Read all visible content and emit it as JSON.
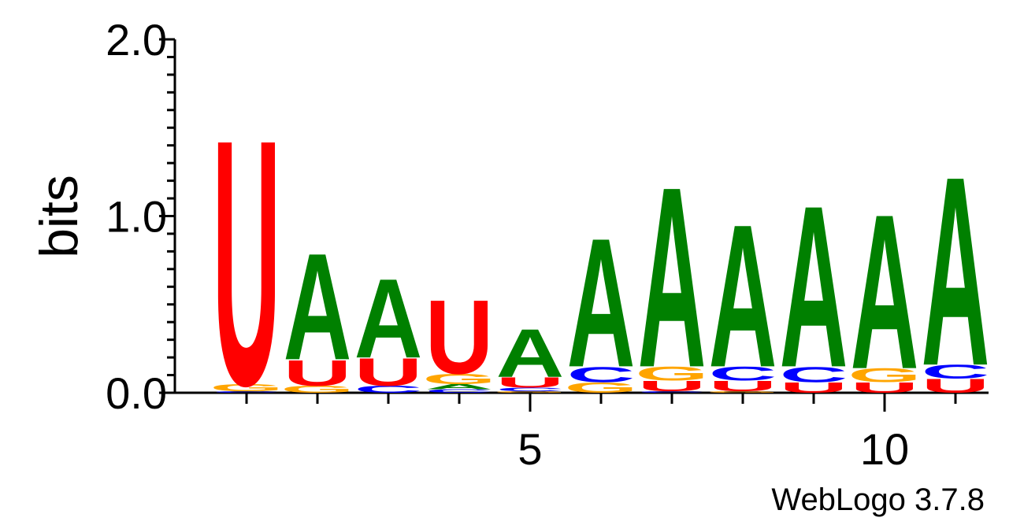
{
  "chart_data": {
    "type": "sequence-logo",
    "ylabel": "bits",
    "ylim": [
      0,
      2
    ],
    "y_ticks": [
      "0.0",
      "1.0",
      "2.0"
    ],
    "x_ticks": [
      "5",
      "10"
    ],
    "footer": "WebLogo 3.7.8",
    "colors": {
      "A": "#008000",
      "C": "#0000ff",
      "G": "#ffa500",
      "U": "#ff0000"
    },
    "positions": [
      {
        "pos": 1,
        "stack": [
          [
            "C",
            0.01
          ],
          [
            "G",
            0.04
          ],
          [
            "U",
            1.43
          ]
        ]
      },
      {
        "pos": 2,
        "stack": [
          [
            "G",
            0.04
          ],
          [
            "U",
            0.15
          ],
          [
            "A",
            0.62
          ]
        ]
      },
      {
        "pos": 3,
        "stack": [
          [
            "C",
            0.04
          ],
          [
            "U",
            0.16
          ],
          [
            "A",
            0.46
          ]
        ]
      },
      {
        "pos": 4,
        "stack": [
          [
            "C",
            0.02
          ],
          [
            "A",
            0.03
          ],
          [
            "G",
            0.06
          ],
          [
            "U",
            0.43
          ]
        ]
      },
      {
        "pos": 5,
        "stack": [
          [
            "G",
            0.01
          ],
          [
            "C",
            0.02
          ],
          [
            "U",
            0.06
          ],
          [
            "A",
            0.28
          ]
        ]
      },
      {
        "pos": 6,
        "stack": [
          [
            "G",
            0.06
          ],
          [
            "C",
            0.09
          ],
          [
            "A",
            0.75
          ]
        ]
      },
      {
        "pos": 7,
        "stack": [
          [
            "C",
            0.01
          ],
          [
            "U",
            0.06
          ],
          [
            "G",
            0.08
          ],
          [
            "A",
            1.05
          ]
        ]
      },
      {
        "pos": 8,
        "stack": [
          [
            "G",
            0.01
          ],
          [
            "U",
            0.06
          ],
          [
            "C",
            0.08
          ],
          [
            "A",
            0.83
          ]
        ]
      },
      {
        "pos": 9,
        "stack": [
          [
            "U",
            0.06
          ],
          [
            "C",
            0.09
          ],
          [
            "A",
            0.94
          ]
        ]
      },
      {
        "pos": 10,
        "stack": [
          [
            "U",
            0.06
          ],
          [
            "G",
            0.08
          ],
          [
            "A",
            0.9
          ]
        ]
      },
      {
        "pos": 11,
        "stack": [
          [
            "U",
            0.08
          ],
          [
            "C",
            0.08
          ],
          [
            "A",
            1.1
          ]
        ]
      }
    ]
  }
}
